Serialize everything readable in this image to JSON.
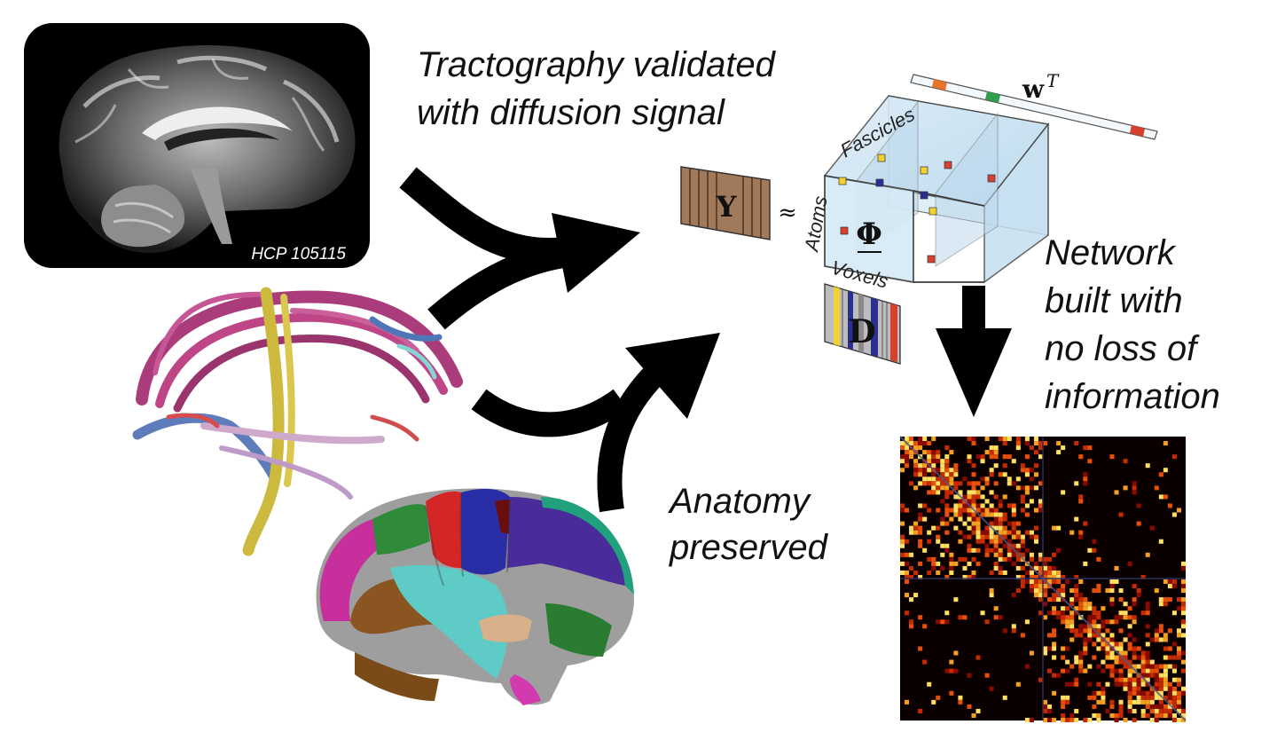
{
  "labels": {
    "tractography_caption_line1": "Tractography validated",
    "tractography_caption_line2": "with diffusion signal",
    "anatomy_caption_line1": "Anatomy",
    "anatomy_caption_line2": "preserved",
    "network_caption_line1": "Network",
    "network_caption_line2": "built with",
    "network_caption_line3": "no loss of",
    "network_caption_line4": "information",
    "mri_subject_label": "HCP 105115"
  },
  "model": {
    "signal_symbol": "Y",
    "approx_symbol": "≈",
    "tensor_symbol": "Φ",
    "dictionary_symbol": "D",
    "weight_symbol": "w",
    "weight_superscript": "T",
    "atoms_axis_label": "Atoms",
    "fascicles_axis_label": "Fascicles",
    "voxels_axis_label": "Voxels"
  },
  "colors": {
    "arrow": "#000000",
    "signal_matrix": "#a07a5a",
    "tensor_face": "#cfe6f4",
    "tensor_edge": "#4a4a4a",
    "matrix_background": "#0a0000",
    "accent_orange": "#e8742a",
    "accent_green": "#2e9e4e",
    "accent_red": "#d6402f",
    "accent_yellow": "#f2d230",
    "accent_blue": "#2b2f8f",
    "accent_gray": "#b8b8b8"
  }
}
